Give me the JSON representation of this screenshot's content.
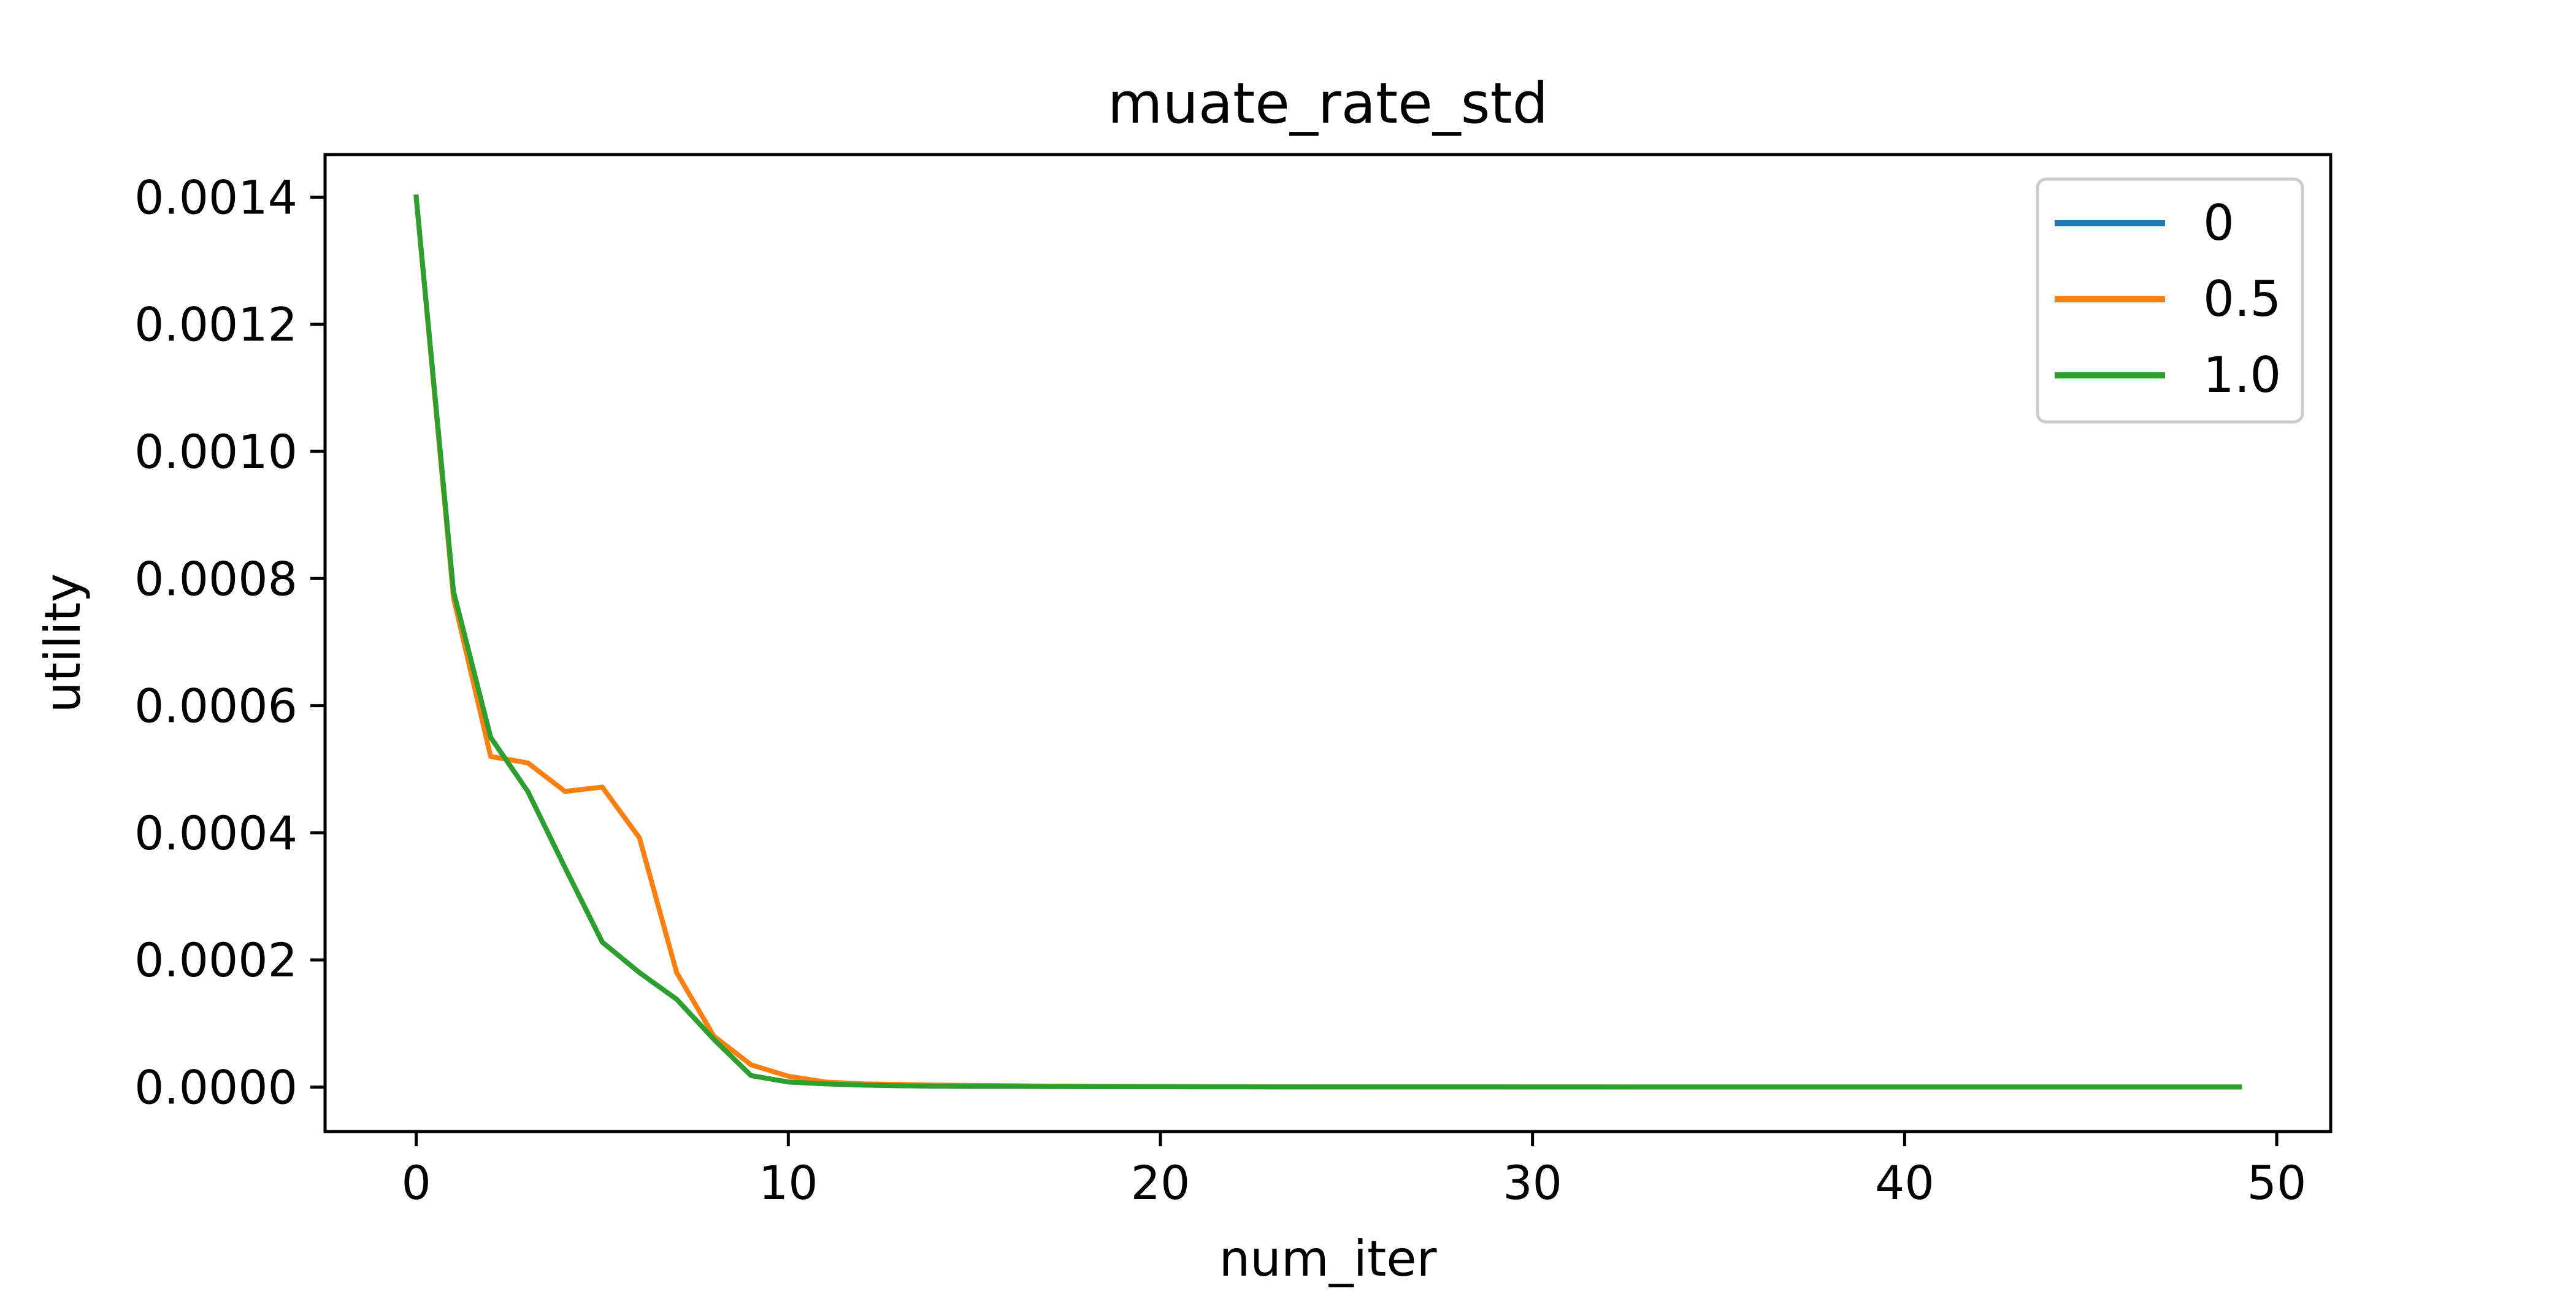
{
  "chart_data": {
    "type": "line",
    "title": "muate_rate_std",
    "xlabel": "num_iter",
    "ylabel": "utility",
    "xlim": [
      -2.45,
      51.45
    ],
    "ylim": [
      -7e-05,
      0.001467
    ],
    "x_ticks": [
      0,
      10,
      20,
      30,
      40,
      50
    ],
    "x_tick_labels": [
      "0",
      "10",
      "20",
      "30",
      "40",
      "50"
    ],
    "y_ticks": [
      0,
      0.0002,
      0.0004,
      0.0006,
      0.0008,
      0.001,
      0.0012,
      0.0014
    ],
    "y_tick_labels": [
      "0.0000",
      "0.0002",
      "0.0004",
      "0.0006",
      "0.0008",
      "0.0010",
      "0.0012",
      "0.0014"
    ],
    "grid": false,
    "legend": "top-right",
    "x": [
      0,
      1,
      2,
      3,
      4,
      5,
      6,
      7,
      8,
      9,
      10,
      11,
      12,
      13,
      14,
      15,
      16,
      17,
      18,
      19,
      20,
      21,
      22,
      23,
      24,
      25,
      26,
      27,
      28,
      29,
      30,
      31,
      32,
      33,
      34,
      35,
      36,
      37,
      38,
      39,
      40,
      41,
      42,
      43,
      44,
      45,
      46,
      47,
      48,
      49
    ],
    "series": [
      {
        "name": "0",
        "color": "#1f77b4",
        "values": [
          0.0014,
          0.00078,
          0.00055,
          0.000465,
          0.000345,
          0.000228,
          0.00018,
          0.000138,
          7.5e-05,
          1.8e-05,
          8e-06,
          5e-06,
          3e-06,
          2e-06,
          1.5e-06,
          1e-06,
          1e-06,
          8e-07,
          6e-07,
          5e-07,
          4e-07,
          3e-07,
          3e-07,
          2e-07,
          2e-07,
          2e-07,
          1e-07,
          1e-07,
          1e-07,
          1e-07,
          0,
          0,
          0,
          0,
          0,
          0,
          0,
          0,
          0,
          0,
          0,
          0,
          0,
          0,
          0,
          0,
          0,
          0,
          0,
          0
        ]
      },
      {
        "name": "0.5",
        "color": "#ff7f0e",
        "values": [
          0.0014,
          0.00077,
          0.00052,
          0.00051,
          0.000465,
          0.000472,
          0.000392,
          0.00018,
          8e-05,
          3.5e-05,
          1.7e-05,
          8e-06,
          5e-06,
          4e-06,
          3e-06,
          2.5e-06,
          2e-06,
          1.5e-06,
          1.2e-06,
          1e-06,
          8e-07,
          6e-07,
          5e-07,
          4e-07,
          3e-07,
          3e-07,
          2e-07,
          2e-07,
          2e-07,
          1e-07,
          1e-07,
          1e-07,
          1e-07,
          0,
          0,
          0,
          0,
          0,
          0,
          0,
          0,
          0,
          0,
          0,
          0,
          0,
          0,
          0,
          0,
          0
        ]
      },
      {
        "name": "1.0",
        "color": "#2ca02c",
        "values": [
          0.0014,
          0.00078,
          0.00055,
          0.000465,
          0.000345,
          0.000228,
          0.00018,
          0.000138,
          7.5e-05,
          1.8e-05,
          8e-06,
          5e-06,
          3e-06,
          2e-06,
          1.5e-06,
          1e-06,
          1e-06,
          8e-07,
          6e-07,
          5e-07,
          4e-07,
          3e-07,
          3e-07,
          2e-07,
          2e-07,
          2e-07,
          1e-07,
          1e-07,
          1e-07,
          1e-07,
          0,
          0,
          0,
          0,
          0,
          0,
          0,
          0,
          0,
          0,
          0,
          0,
          0,
          0,
          0,
          0,
          0,
          0,
          0,
          0
        ]
      }
    ]
  }
}
